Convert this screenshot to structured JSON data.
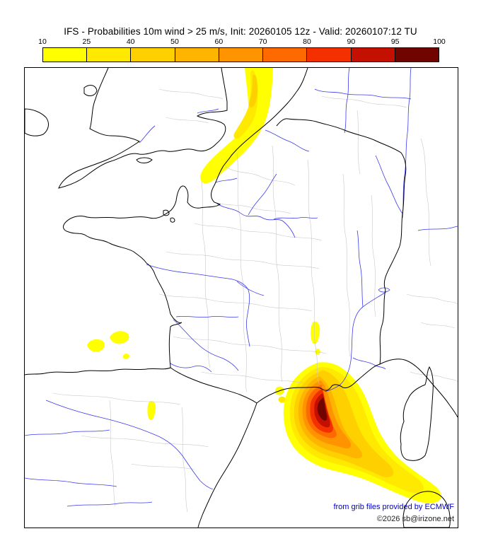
{
  "title": "IFS - Probabilities 10m wind > 25 m/s, Init: 20260105 12z - Valid: 20260107:12 TU",
  "scale": {
    "labels": [
      "10",
      "25",
      "40",
      "50",
      "60",
      "70",
      "80",
      "90",
      "95",
      "100"
    ],
    "colors": [
      "#ffff00",
      "#ffe900",
      "#ffd000",
      "#ffb400",
      "#ff9400",
      "#ff6a00",
      "#f53000",
      "#c41000",
      "#700500"
    ]
  },
  "map": {
    "colors": {
      "coast": "#000000",
      "river": "#3a3aee",
      "admin": "#c8c8c8",
      "background": "#ffffff"
    },
    "credit_line1": "from grib files provided by ECMWF",
    "credit_line2": "©2026 sb@irizone.net",
    "credit_color1": "#0000cc",
    "credit_color2": "#222222"
  },
  "chart_data": {
    "type": "heatmap",
    "title": "IFS - Probabilities 10m wind > 25 m/s, Init: 20260105 12z - Valid: 20260107:12 TU",
    "variable": "Probability of 10m wind > 25 m/s (%)",
    "model": "IFS",
    "init": "20260105 12z",
    "valid": "20260107:12 TU",
    "levels": [
      10,
      25,
      40,
      50,
      60,
      70,
      80,
      90,
      95,
      100
    ],
    "legend_position": "top",
    "regions": [
      {
        "name": "North Sea / Belgian-Dutch coast band down to Dover Strait",
        "peak_percent": "40-50"
      },
      {
        "name": "NW Mediterranean off Provence / Ligurian Sea (main maximum)",
        "peak_percent": "95-100"
      },
      {
        "name": "Tail from Gulf of Lion toward Corsica-Sardinia strait",
        "peak_percent": "25-60"
      },
      {
        "name": "Western Pyrenees foothill spots",
        "peak_percent": "10-25"
      },
      {
        "name": "Rhone valley spot",
        "peak_percent": "10-25"
      },
      {
        "name": "NE Spain (Ebro area) spot",
        "peak_percent": "10-25"
      }
    ]
  }
}
